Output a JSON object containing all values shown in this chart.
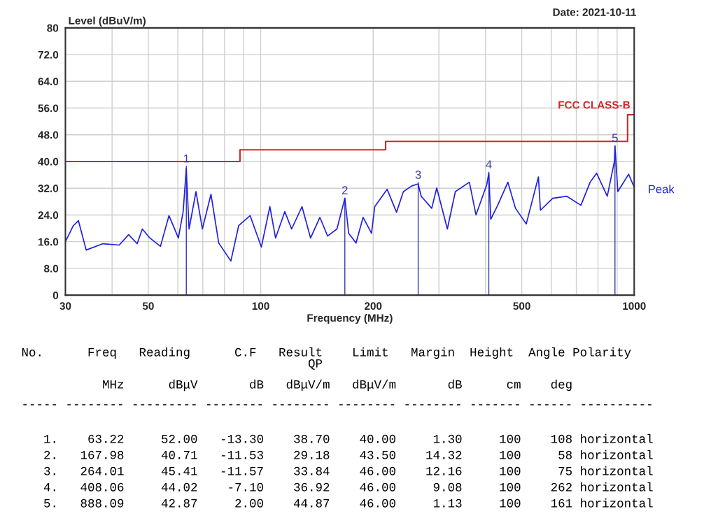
{
  "chart_data": {
    "type": "line",
    "xlabel": "Frequency (MHz)",
    "ylabel": "Level (dBuV/m)",
    "log": "x",
    "xlim": [
      30,
      1000
    ],
    "ylim": [
      0,
      80
    ],
    "xticks": [
      30,
      {
        "value": 40,
        "label": null
      },
      50,
      {
        "value": 60,
        "label": null
      },
      {
        "value": 70,
        "label": null
      },
      {
        "value": 80,
        "label": null
      },
      {
        "value": 90,
        "label": null
      },
      100,
      200,
      {
        "value": 300,
        "label": null
      },
      {
        "value": 400,
        "label": null
      },
      500,
      {
        "value": 600,
        "label": null
      },
      {
        "value": 700,
        "label": null
      },
      {
        "value": 800,
        "label": null
      },
      {
        "value": 900,
        "label": null
      },
      1000
    ],
    "yticks": [
      0,
      {
        "value": 8,
        "label": "8.0"
      },
      {
        "value": 16,
        "label": "16.0"
      },
      {
        "value": 24,
        "label": "24.0"
      },
      {
        "value": 32,
        "label": "32.0"
      },
      {
        "value": 40,
        "label": "40.0"
      },
      {
        "value": 48,
        "label": "48.0"
      },
      {
        "value": 56,
        "label": "56.0"
      },
      {
        "value": 64,
        "label": "64.0"
      },
      {
        "value": 72,
        "label": "72.0"
      },
      80
    ],
    "grid": true,
    "legend": false,
    "series": [
      {
        "name": "Peak",
        "color": "#1f1fe0",
        "x": [
          30,
          31.5,
          32.5,
          34.1,
          37.8,
          41.8,
          44.3,
          46.7,
          48.2,
          50.5,
          53.9,
          56.8,
          60.2,
          62.0,
          63.2,
          64.3,
          67.1,
          69.8,
          73.6,
          77.2,
          83.2,
          87.3,
          93.7,
          100.4,
          105.8,
          109.6,
          116,
          121,
          129,
          136,
          144,
          151,
          160,
          168,
          172,
          180,
          188,
          198,
          202,
          218,
          231,
          241,
          254,
          264,
          269,
          287,
          296,
          316,
          332,
          362,
          377,
          403,
          408,
          413,
          431,
          459,
          481,
          514,
          554,
          561,
          605,
          660,
          720,
          762,
          793,
          847,
          885,
          888,
          904,
          966,
          1000
        ],
        "values": [
          16.0,
          20.8,
          22.3,
          13.5,
          15.4,
          15.0,
          18.1,
          15.4,
          19.8,
          17.1,
          14.6,
          23.8,
          17.1,
          25.0,
          37.9,
          19.8,
          31.0,
          19.8,
          30.2,
          15.6,
          10.2,
          20.8,
          23.8,
          14.4,
          26.5,
          17.1,
          25.0,
          19.8,
          26.5,
          17.1,
          23.3,
          17.7,
          19.8,
          29.0,
          18.5,
          15.6,
          23.3,
          18.5,
          26.5,
          31.7,
          24.8,
          31.0,
          32.7,
          33.3,
          29.6,
          26.0,
          32.1,
          19.8,
          31.0,
          33.8,
          24.0,
          33.1,
          36.5,
          22.7,
          26.9,
          33.8,
          26.0,
          21.3,
          35.4,
          25.4,
          29.0,
          29.6,
          26.9,
          33.8,
          36.5,
          29.6,
          40.0,
          44.6,
          31.0,
          36.2,
          32.3
        ]
      },
      {
        "name": "FCC CLASS-B",
        "type": "step",
        "color": "#d02828",
        "x": [
          30,
          88,
          216,
          960,
          1000
        ],
        "values": [
          40,
          43.5,
          46,
          54,
          54
        ]
      },
      {
        "type": "bar",
        "color": "#3a3aa8",
        "x": [
          63.22,
          167.98,
          264.01,
          408.06,
          888.09
        ],
        "values": [
          38.7,
          29.18,
          33.84,
          36.92,
          44.87
        ]
      }
    ],
    "annotations": [
      "Date: 2021-10-11",
      {
        "text": "1",
        "x": 63.22,
        "y": 38.7
      },
      {
        "text": "2",
        "x": 167.98,
        "y": 29.18
      },
      {
        "text": "3",
        "x": 264.01,
        "y": 33.84
      },
      {
        "text": "4",
        "x": 408.06,
        "y": 36.92
      },
      {
        "text": "5",
        "x": 888.09,
        "y": 44.87
      },
      "No.      Freq   Reading      C.F   Result    Limit   Margin  Height  Angle Polarity",
      "                                       QP",
      "           MHz      dBμV       dB   dBμV/m   dBμV/m       dB      cm    deg",
      "----- -------- --------- -------- -------- -------- -------- ------- ------ ----------",
      "   1.    63.22     52.00   -13.30    38.70    40.00     1.30     100    108 horizontal",
      "   2.   167.98     40.71   -11.53    29.18    43.50    14.32     100     58 horizontal",
      "   3.   264.01     45.41   -11.57    33.84    46.00    12.16     100     75 horizontal",
      "   4.   408.06     44.02    -7.10    36.92    46.00     9.08     100    262 horizontal",
      "   5.   888.09     42.87     2.00    44.87    46.00     1.13     100    161 horizontal"
    ]
  }
}
